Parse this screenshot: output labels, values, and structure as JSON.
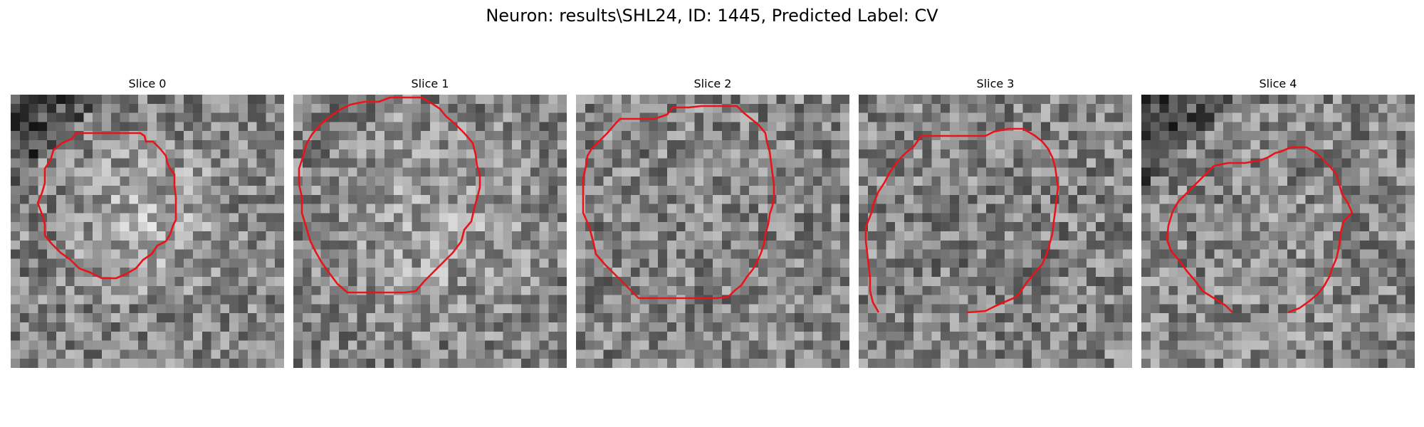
{
  "figure": {
    "suptitle": "Neuron: results\\SHL24, ID: 1445, Predicted Label: CV"
  },
  "contour_color": "#e8141a",
  "image_colormap": "gray",
  "panels": [
    {
      "title": "Slice 0"
    },
    {
      "title": "Slice 1"
    },
    {
      "title": "Slice 2"
    },
    {
      "title": "Slice 3"
    },
    {
      "title": "Slice 4"
    }
  ]
}
